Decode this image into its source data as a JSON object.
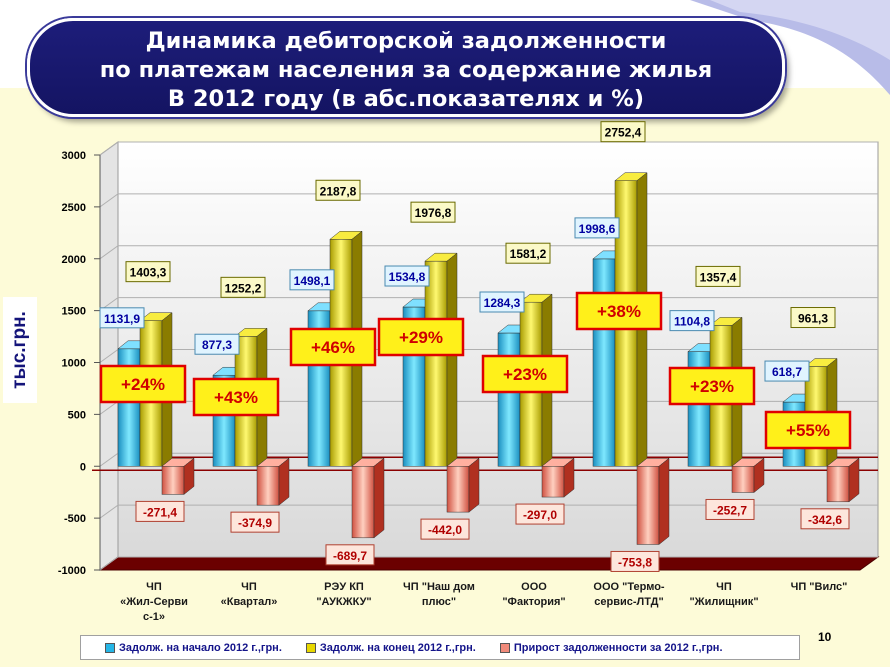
{
  "title": {
    "line1": "Динамика дебиторской задолженности",
    "line2": "по платежам населения за содержание жилья",
    "line3": "В 2012 году (в абс.показателях и %)"
  },
  "page_number": "10",
  "chart_data": {
    "type": "bar",
    "ylabel": "тыс.грн.",
    "ylim": [
      -1000,
      3000
    ],
    "yticks": [
      3000,
      2500,
      2000,
      1500,
      1000,
      500,
      0,
      -500,
      -1000
    ],
    "grid": true,
    "legend_position": "bottom",
    "categories": [
      [
        "ЧП",
        "«Жил-Серви",
        "с-1»"
      ],
      [
        "ЧП",
        "«Квартал»"
      ],
      [
        "РЭУ КП",
        "\"АУКЖКУ\""
      ],
      [
        "ЧП \"Наш дом",
        "плюс\""
      ],
      [
        "ООО",
        "\"Фактория\""
      ],
      [
        "ООО \"Термо-",
        "сервис-ЛТД\""
      ],
      [
        "ЧП",
        "\"Жилищник\""
      ],
      [
        "ЧП \"Вилс\""
      ]
    ],
    "series": [
      {
        "name": "Задолж. на начало 2012 г.,грн.",
        "color": "#26b6e6",
        "values": [
          1131.9,
          877.3,
          1498.1,
          1534.8,
          1284.3,
          1998.6,
          1104.8,
          618.7
        ],
        "labels": [
          "1131,9",
          "877,3",
          "1498,1",
          "1534,8",
          "1284,3",
          "1998,6",
          "1104,8",
          "618,7"
        ]
      },
      {
        "name": "Задолж. на конец 2012 г.,грн.",
        "color": "#e8d800",
        "values": [
          1403.3,
          1252.2,
          2187.8,
          1976.8,
          1581.2,
          2752.4,
          1357.4,
          961.3
        ],
        "labels": [
          "1403,3",
          "1252,2",
          "2187,8",
          "1976,8",
          "1581,2",
          "2752,4",
          "1357,4",
          "961,3"
        ]
      },
      {
        "name": "Прирост задолженности за 2012 г.,грн.",
        "color": "#f08a7a",
        "values": [
          -271.4,
          -374.9,
          -689.7,
          -442.0,
          -297.0,
          -753.8,
          -252.7,
          -342.6
        ],
        "labels": [
          "-271,4",
          "-374,9",
          "-689,7",
          "-442,0",
          "-297,0",
          "-753,8",
          "-252,7",
          "-342,6"
        ]
      }
    ],
    "growth_labels": [
      "+24%",
      "+43%",
      "+46%",
      "+29%",
      "+23%",
      "+38%",
      "+23%",
      "+55%"
    ]
  }
}
